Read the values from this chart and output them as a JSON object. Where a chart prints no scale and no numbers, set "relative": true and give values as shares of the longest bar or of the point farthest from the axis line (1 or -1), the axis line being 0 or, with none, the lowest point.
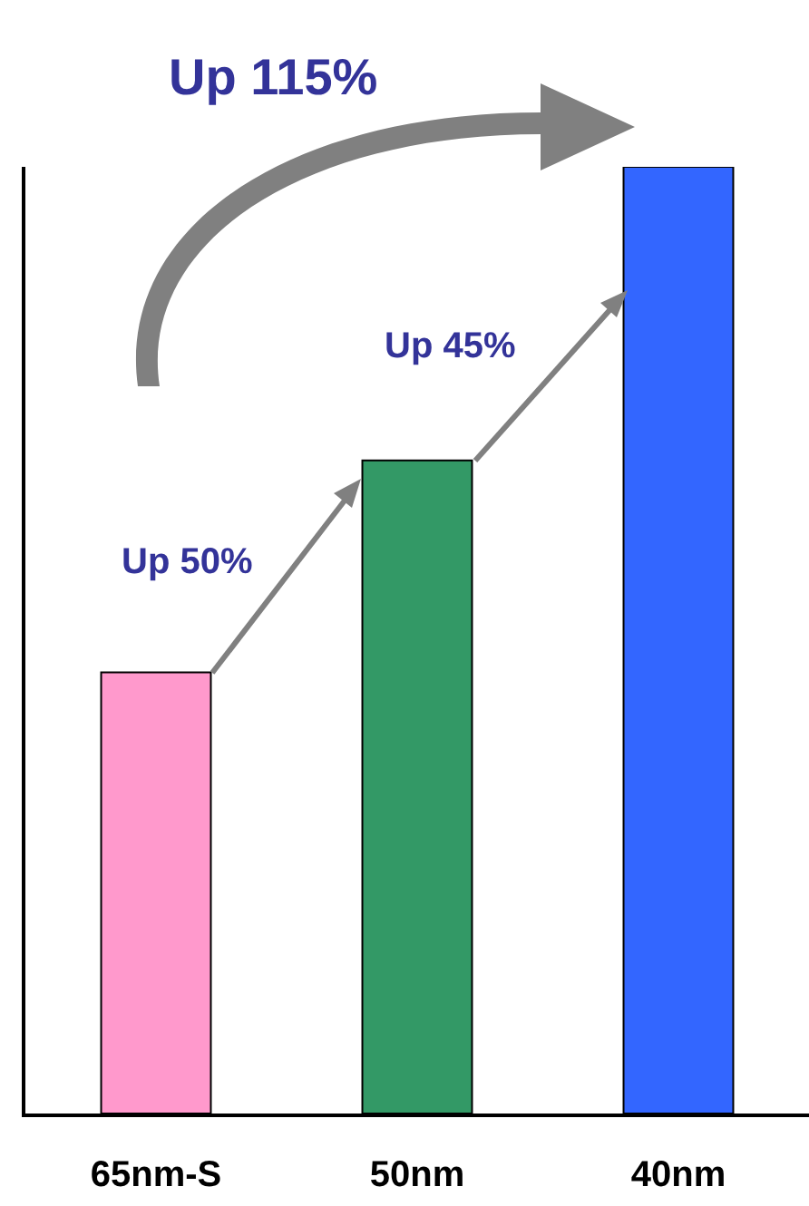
{
  "chart_data": {
    "type": "bar",
    "relative": true,
    "categories": [
      "65nm-S",
      "50nm",
      "40nm"
    ],
    "values": [
      0.466,
      0.69,
      1
    ],
    "colors": [
      "#ff99cc",
      "#339966",
      "#3366ff"
    ],
    "annotations": [
      "Up 50%",
      "Up 45%",
      "Up 115%"
    ],
    "grid": false,
    "legend": false
  }
}
